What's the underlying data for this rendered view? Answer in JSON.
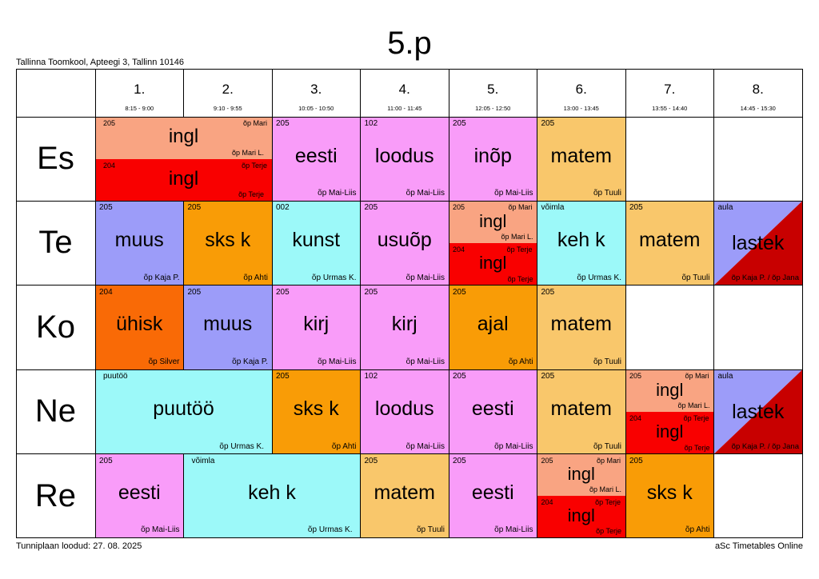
{
  "title": "5.p",
  "school": "Tallinna Toomkool, Apteegi 3, Tallinn 10146",
  "footer": {
    "left": "Tunniplaan loodud: 27. 08. 2025",
    "right": "aSc Timetables Online"
  },
  "colors": {
    "ingl_top": "#f9a482",
    "ingl_bottom": "#f90000",
    "pink": "#f99cf9",
    "yellow": "#f9c76b",
    "lavender": "#9c9cf9",
    "orange": "#f99c06",
    "cyan": "#9cf9f9",
    "darkorange": "#f96a06",
    "darkred": "#c80000"
  },
  "periods": [
    {
      "num": "1.",
      "time": "8:15 - 9:00"
    },
    {
      "num": "2.",
      "time": "9:10 - 9:55"
    },
    {
      "num": "3.",
      "time": "10:05 - 10:50"
    },
    {
      "num": "4.",
      "time": "11:00 - 11:45"
    },
    {
      "num": "5.",
      "time": "12:05 - 12:50"
    },
    {
      "num": "6.",
      "time": "13:00 - 13:45"
    },
    {
      "num": "7.",
      "time": "13:55 - 14:40"
    },
    {
      "num": "8.",
      "time": "14:45 - 15:30"
    }
  ],
  "days": [
    "Es",
    "Te",
    "Ko",
    "Ne",
    "Re"
  ],
  "lessons": [
    {
      "day": 0,
      "start": 0,
      "span": 2,
      "kind": "split",
      "top": {
        "room": "205",
        "subject": "ingl",
        "teacher": "õp Mari",
        "teacher2": "õp Mari L."
      },
      "bottom": {
        "room": "204",
        "subject": "ingl",
        "teacher": "õp Terje",
        "teacher2": "õp Terje"
      }
    },
    {
      "day": 0,
      "start": 2,
      "span": 1,
      "room": "205",
      "subject": "eesti",
      "teacher": "õp Mai-Liis",
      "color": "pink"
    },
    {
      "day": 0,
      "start": 3,
      "span": 1,
      "room": "102",
      "subject": "loodus",
      "teacher": "õp Mai-Liis",
      "color": "pink"
    },
    {
      "day": 0,
      "start": 4,
      "span": 1,
      "room": "205",
      "subject": "inõp",
      "teacher": "õp Mai-Liis",
      "color": "pink"
    },
    {
      "day": 0,
      "start": 5,
      "span": 1,
      "room": "205",
      "subject": "matem",
      "teacher": "õp Tuuli",
      "color": "yellow"
    },
    {
      "day": 1,
      "start": 0,
      "span": 1,
      "room": "205",
      "subject": "muus",
      "teacher": "õp Kaja P.",
      "color": "lavender"
    },
    {
      "day": 1,
      "start": 1,
      "span": 1,
      "room": "205",
      "subject": "sks k",
      "teacher": "õp Ahti",
      "color": "orange"
    },
    {
      "day": 1,
      "start": 2,
      "span": 1,
      "room": "002",
      "subject": "kunst",
      "teacher": "õp Urmas K.",
      "color": "cyan"
    },
    {
      "day": 1,
      "start": 3,
      "span": 1,
      "room": "205",
      "subject": "usuõp",
      "teacher": "õp Mai-Liis",
      "color": "pink"
    },
    {
      "day": 1,
      "start": 4,
      "span": 1,
      "kind": "split",
      "top": {
        "room": "205",
        "subject": "ingl",
        "teacher": "õp Mari",
        "teacher2": "õp Mari L."
      },
      "bottom": {
        "room": "204",
        "subject": "ingl",
        "teacher": "õp Terje",
        "teacher2": "õp Terje"
      }
    },
    {
      "day": 1,
      "start": 5,
      "span": 1,
      "room": "võimla",
      "subject": "keh k",
      "teacher": "õp Urmas K.",
      "color": "cyan"
    },
    {
      "day": 1,
      "start": 6,
      "span": 1,
      "room": "205",
      "subject": "matem",
      "teacher": "õp Tuuli",
      "color": "yellow"
    },
    {
      "day": 1,
      "start": 7,
      "span": 1,
      "kind": "diag",
      "room": "aula",
      "subject": "lastek",
      "teacher": "õp Kaja P. / õp Jana"
    },
    {
      "day": 2,
      "start": 0,
      "span": 1,
      "room": "204",
      "subject": "ühisk",
      "teacher": "õp Silver",
      "color": "darkorange"
    },
    {
      "day": 2,
      "start": 1,
      "span": 1,
      "room": "205",
      "subject": "muus",
      "teacher": "õp Kaja P.",
      "color": "lavender"
    },
    {
      "day": 2,
      "start": 2,
      "span": 1,
      "room": "205",
      "subject": "kirj",
      "teacher": "õp Mai-Liis",
      "color": "pink"
    },
    {
      "day": 2,
      "start": 3,
      "span": 1,
      "room": "205",
      "subject": "kirj",
      "teacher": "õp Mai-Liis",
      "color": "pink"
    },
    {
      "day": 2,
      "start": 4,
      "span": 1,
      "room": "205",
      "subject": "ajal",
      "teacher": "õp Ahti",
      "color": "orange"
    },
    {
      "day": 2,
      "start": 5,
      "span": 1,
      "room": "205",
      "subject": "matem",
      "teacher": "õp Tuuli",
      "color": "yellow"
    },
    {
      "day": 3,
      "start": 0,
      "span": 2,
      "room": "puutöö",
      "subject": "puutöö",
      "teacher": "õp Urmas K.",
      "color": "cyan"
    },
    {
      "day": 3,
      "start": 2,
      "span": 1,
      "room": "205",
      "subject": "sks k",
      "teacher": "õp Ahti",
      "color": "orange"
    },
    {
      "day": 3,
      "start": 3,
      "span": 1,
      "room": "102",
      "subject": "loodus",
      "teacher": "õp Mai-Liis",
      "color": "pink"
    },
    {
      "day": 3,
      "start": 4,
      "span": 1,
      "room": "205",
      "subject": "eesti",
      "teacher": "õp Mai-Liis",
      "color": "pink"
    },
    {
      "day": 3,
      "start": 5,
      "span": 1,
      "room": "205",
      "subject": "matem",
      "teacher": "õp Tuuli",
      "color": "yellow"
    },
    {
      "day": 3,
      "start": 6,
      "span": 1,
      "kind": "split",
      "top": {
        "room": "205",
        "subject": "ingl",
        "teacher": "õp Mari",
        "teacher2": "õp Mari L."
      },
      "bottom": {
        "room": "204",
        "subject": "ingl",
        "teacher": "õp Terje",
        "teacher2": "õp Terje"
      }
    },
    {
      "day": 3,
      "start": 7,
      "span": 1,
      "kind": "diag",
      "room": "aula",
      "subject": "lastek",
      "teacher": "õp Kaja P. / õp Jana"
    },
    {
      "day": 4,
      "start": 0,
      "span": 1,
      "room": "205",
      "subject": "eesti",
      "teacher": "õp Mai-Liis",
      "color": "pink"
    },
    {
      "day": 4,
      "start": 1,
      "span": 2,
      "room": "võimla",
      "subject": "keh k",
      "teacher": "õp Urmas K.",
      "color": "cyan"
    },
    {
      "day": 4,
      "start": 3,
      "span": 1,
      "room": "205",
      "subject": "matem",
      "teacher": "õp Tuuli",
      "color": "yellow"
    },
    {
      "day": 4,
      "start": 4,
      "span": 1,
      "room": "205",
      "subject": "eesti",
      "teacher": "õp Mai-Liis",
      "color": "pink"
    },
    {
      "day": 4,
      "start": 5,
      "span": 1,
      "kind": "split",
      "top": {
        "room": "205",
        "subject": "ingl",
        "teacher": "õp Mari",
        "teacher2": "õp Mari L."
      },
      "bottom": {
        "room": "204",
        "subject": "ingl",
        "teacher": "õp Terje",
        "teacher2": "õp Terje"
      }
    },
    {
      "day": 4,
      "start": 6,
      "span": 1,
      "room": "205",
      "subject": "sks k",
      "teacher": "õp Ahti",
      "color": "orange"
    }
  ]
}
